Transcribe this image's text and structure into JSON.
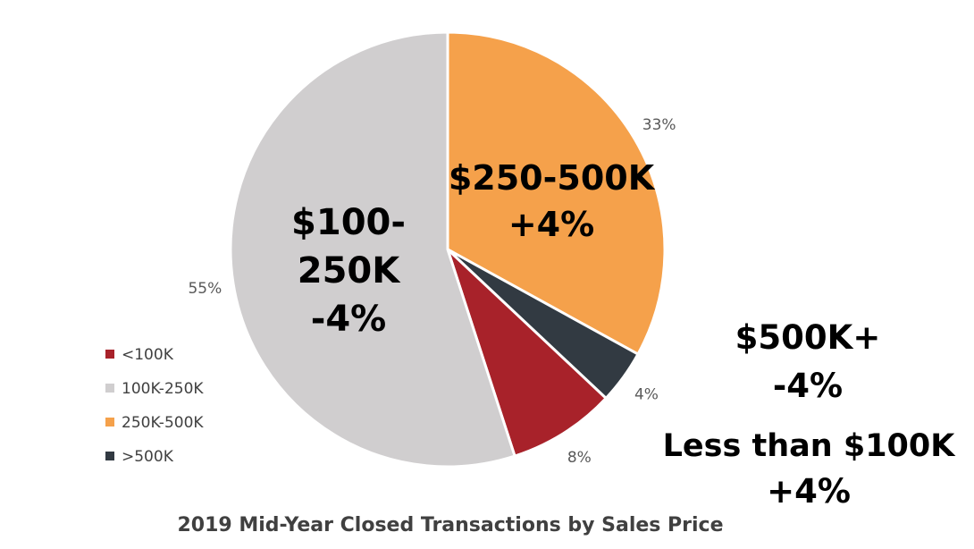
{
  "chart_data": {
    "type": "pie",
    "title": "2019 Mid-Year Closed Transactions by Sales Price",
    "slices": [
      {
        "label": "250K-500K",
        "value": 33,
        "pct_label": "33%",
        "color": "#F5A14B"
      },
      {
        "label": ">500K",
        "value": 4,
        "pct_label": "4%",
        "color": "#323A42"
      },
      {
        "label": "<100K",
        "value": 8,
        "pct_label": "8%",
        "color": "#A8222A"
      },
      {
        "label": "100K-250K",
        "value": 55,
        "pct_label": "55%",
        "color": "#D0CECF"
      }
    ],
    "legend": {
      "position": "left",
      "items": [
        {
          "label": "<100K",
          "color": "#A8222A"
        },
        {
          "label": "100K-250K",
          "color": "#D0CECF"
        },
        {
          "label": "250K-500K",
          "color": "#F5A14B"
        },
        {
          "label": ">500K",
          "color": "#323A42"
        }
      ]
    }
  },
  "callouts": {
    "mid_range": [
      "$100-",
      "250K",
      "-4%"
    ],
    "upper_range": [
      "$250-500K",
      "+4%"
    ],
    "top_range": [
      "$500K+",
      "-4%"
    ],
    "low_range": [
      "Less than $100K",
      "+4%"
    ]
  }
}
